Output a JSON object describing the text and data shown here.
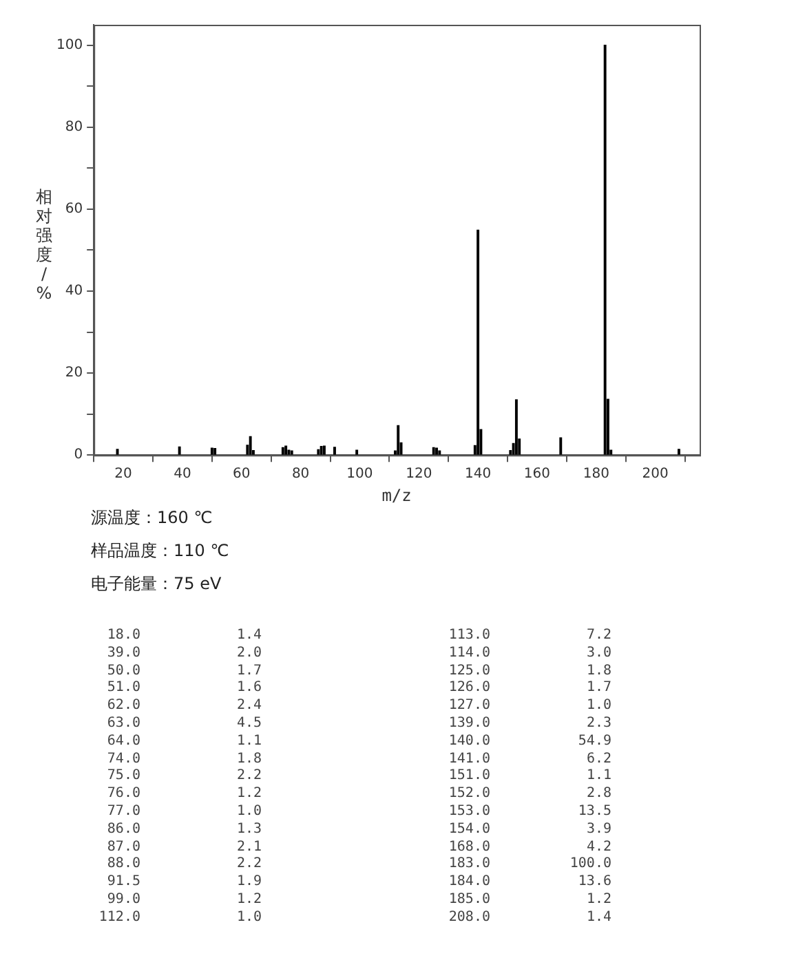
{
  "chart_data": {
    "type": "bar",
    "xlabel": "m/z",
    "ylabel": "相对强度/%",
    "x": [
      18,
      39,
      50,
      51,
      62,
      63,
      64,
      74,
      75,
      76,
      77,
      86,
      87,
      88,
      91.5,
      99,
      112,
      113,
      114,
      125,
      126,
      127,
      139,
      140,
      141,
      151,
      152,
      153,
      154,
      168,
      183,
      184,
      185,
      208
    ],
    "values": [
      1.4,
      2.0,
      1.7,
      1.6,
      2.4,
      4.5,
      1.1,
      1.8,
      2.2,
      1.2,
      1.0,
      1.3,
      2.1,
      2.2,
      1.9,
      1.2,
      1.0,
      7.2,
      3.0,
      1.8,
      1.7,
      1.0,
      2.3,
      54.9,
      6.2,
      1.1,
      2.8,
      13.5,
      3.9,
      4.2,
      100.0,
      13.6,
      1.2,
      1.4
    ],
    "color": "#000000",
    "xlim": [
      10,
      215
    ],
    "xticks": [
      20,
      40,
      60,
      80,
      100,
      120,
      140,
      160,
      180,
      200
    ],
    "ylim": [
      0,
      105
    ],
    "yticks": [
      0,
      {
        "value": 10,
        "label": null
      },
      20,
      {
        "value": 30,
        "label": null
      },
      40,
      {
        "value": 50,
        "label": null
      },
      60,
      {
        "value": 70,
        "label": null
      },
      80,
      {
        "value": 90,
        "label": null
      },
      100
    ],
    "grid": false,
    "legend": false,
    "annotations": [
      "源温度：160 ℃",
      "样品温度：110 ℃",
      "电子能量：75 eV",
      "18.0",
      "1.4",
      "39.0",
      "2.0",
      "50.0",
      "1.7",
      "51.0",
      "1.6",
      "62.0",
      "2.4",
      "63.0",
      "4.5",
      "64.0",
      "1.1",
      "74.0",
      "1.8",
      "75.0",
      "2.2",
      "76.0",
      "1.2",
      "77.0",
      "1.0",
      "86.0",
      "1.3",
      "87.0",
      "2.1",
      "88.0",
      "2.2",
      "91.5",
      "1.9",
      "99.0",
      "1.2",
      "112.0",
      "1.0",
      "113.0",
      "7.2",
      "114.0",
      "3.0",
      "125.0",
      "1.8",
      "126.0",
      "1.7",
      "127.0",
      "1.0",
      "139.0",
      "2.3",
      "140.0",
      "54.9",
      "141.0",
      "6.2",
      "151.0",
      "1.1",
      "152.0",
      "2.8",
      "153.0",
      "13.5",
      "154.0",
      "3.9",
      "168.0",
      "4.2",
      "183.0",
      "100.0",
      "184.0",
      "13.6",
      "185.0",
      "1.2",
      "208.0",
      "1.4"
    ]
  }
}
